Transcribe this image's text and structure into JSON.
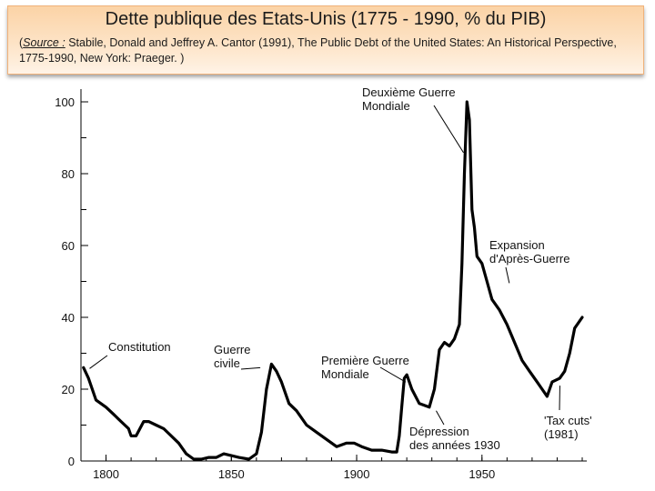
{
  "header": {
    "title": "Dette publique des Etats-Unis (1775 - 1990, % du PIB)",
    "source_open": "(",
    "source_label": "Source :",
    "source_text": " Stabile, Donald and Jeffrey A. Cantor (1991), The Public Debt of the United States: An Historical Perspective, 1775-1990, New York: Praeger. )"
  },
  "colors": {
    "header_bg": "#fde3c6",
    "header_border": "#f0b27a",
    "line": "#000000"
  },
  "chart_data": {
    "type": "line",
    "title": "",
    "xlabel": "",
    "ylabel": "",
    "xlim": [
      1790,
      1990
    ],
    "ylim": [
      0,
      100
    ],
    "x_ticks": [
      1800,
      1850,
      1900,
      1950
    ],
    "y_ticks": [
      0,
      20,
      40,
      60,
      80,
      100
    ],
    "grid": false,
    "series": [
      {
        "x": [
          1791,
          1793,
          1796,
          1800,
          1803,
          1806,
          1809,
          1810,
          1812,
          1815,
          1817,
          1820,
          1823,
          1826,
          1829,
          1832,
          1835,
          1838,
          1841,
          1844,
          1847,
          1850,
          1853,
          1857,
          1860,
          1862,
          1864,
          1866,
          1868,
          1870,
          1873,
          1876,
          1880,
          1884,
          1888,
          1892,
          1896,
          1899,
          1902,
          1906,
          1910,
          1914,
          1916,
          1917,
          1918,
          1919,
          1920,
          1922,
          1925,
          1929,
          1931,
          1933,
          1935,
          1937,
          1939,
          1941,
          1942,
          1943,
          1944,
          1945,
          1946,
          1947,
          1948,
          1950,
          1952,
          1954,
          1957,
          1960,
          1963,
          1966,
          1969,
          1972,
          1974,
          1976,
          1978,
          1981,
          1983,
          1985,
          1987,
          1990
        ],
        "y": [
          26,
          23,
          17,
          15,
          13,
          11,
          9,
          7,
          7,
          11,
          11,
          10,
          9,
          7,
          5,
          2,
          0.5,
          0.5,
          1,
          1,
          2,
          1.5,
          1,
          0.5,
          2,
          8,
          20,
          27,
          25,
          22,
          16,
          14,
          10,
          8,
          6,
          4,
          5,
          5,
          4,
          3,
          3,
          2.5,
          2.5,
          7,
          15,
          23,
          24,
          20,
          16,
          15,
          20,
          31,
          33,
          32,
          34,
          38,
          55,
          80,
          100,
          95,
          70,
          65,
          57,
          55,
          50,
          45,
          42,
          38,
          33,
          28,
          25,
          22,
          20,
          18,
          22,
          23,
          25,
          30,
          37,
          40
        ]
      }
    ],
    "annotations": [
      {
        "lines": [
          "Deuxième Guerre",
          "Mondiale"
        ],
        "x": 1943,
        "y": 98
      },
      {
        "lines": [
          "Expansion",
          "d'Après-Guerre"
        ],
        "x": 1958,
        "y": 47
      },
      {
        "lines": [
          "Constitution"
        ],
        "x": 1792,
        "y": 26
      },
      {
        "lines": [
          "Guerre",
          "civile"
        ],
        "x": 1863,
        "y": 27
      },
      {
        "lines": [
          "Première Guerre",
          "Mondiale"
        ],
        "x": 1921,
        "y": 23
      },
      {
        "lines": [
          "Dépression",
          "des années 1930"
        ],
        "x": 1931,
        "y": 15
      },
      {
        "lines": [
          "'Tax cuts'",
          "(1981)"
        ],
        "x": 1980,
        "y": 22
      }
    ]
  }
}
